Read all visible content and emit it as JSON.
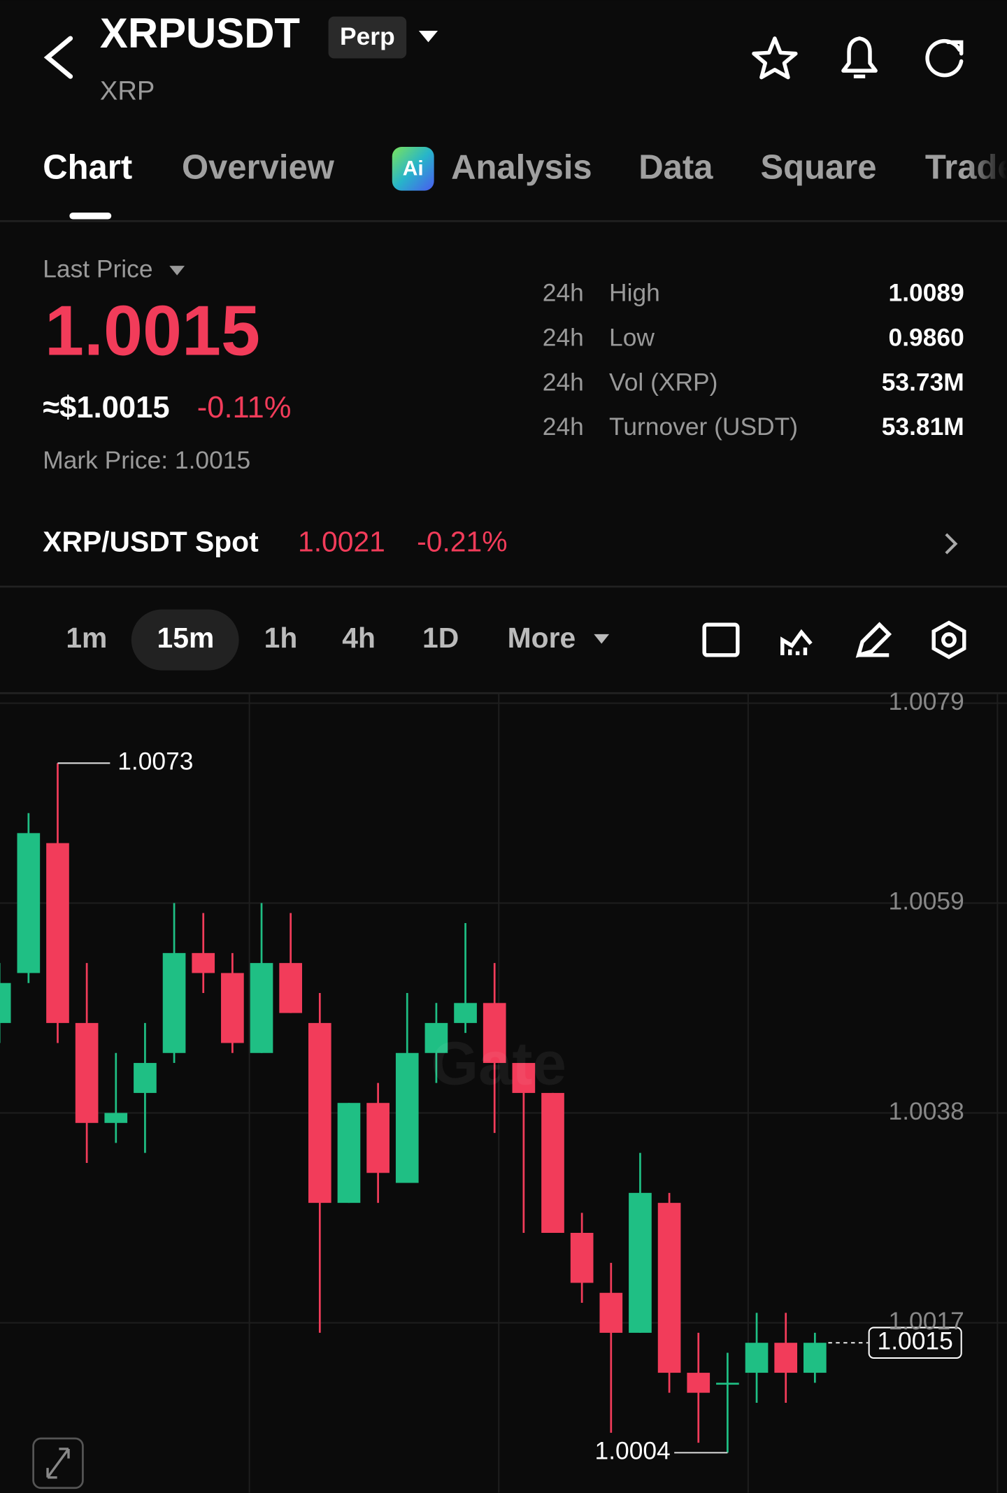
{
  "header": {
    "symbol": "XRPUSDT",
    "badge": "Perp",
    "base": "XRP"
  },
  "tabs": [
    "Chart",
    "Overview",
    "Analysis",
    "Data",
    "Square",
    "Trade"
  ],
  "ai_icon": "Ai",
  "price": {
    "label": "Last Price",
    "last": "1.0015",
    "usd": "≈$1.0015",
    "change": "-0.11%",
    "mark": "Mark Price: 1.0015"
  },
  "stats": [
    {
      "period": "24h",
      "label": "High",
      "value": "1.0089"
    },
    {
      "period": "24h",
      "label": "Low",
      "value": "0.9860"
    },
    {
      "period": "24h",
      "label": "Vol (XRP)",
      "value": "53.73M"
    },
    {
      "period": "24h",
      "label": "Turnover (USDT)",
      "value": "53.81M"
    }
  ],
  "spot": {
    "label": "XRP/USDT Spot",
    "price": "1.0021",
    "change": "-0.21%"
  },
  "intervals": [
    "1m",
    "15m",
    "1h",
    "4h",
    "1D",
    "More"
  ],
  "watermark": "Gate",
  "chart_data": {
    "type": "candlestick",
    "up_color": "#1fbf84",
    "down_color": "#f23c5a",
    "grid": true,
    "ylim": [
      1.0,
      1.008
    ],
    "yticks": [
      1.0079,
      1.0059,
      1.0038,
      1.0017
    ],
    "open": [
      1.0047,
      1.0052,
      1.0065,
      1.0047,
      1.0037,
      1.004,
      1.0044,
      1.0054,
      1.0052,
      1.0044,
      1.0053,
      1.0047,
      1.0029,
      1.0039,
      1.0031,
      1.0044,
      1.0047,
      1.0049,
      1.0043,
      1.004,
      1.0026,
      1.002,
      1.0016,
      1.0029,
      1.0012,
      1.0011,
      1.0012,
      1.0015,
      1.0012
    ],
    "high": [
      1.0053,
      1.0068,
      1.0073,
      1.0053,
      1.0044,
      1.0047,
      1.0059,
      1.0058,
      1.0054,
      1.0059,
      1.0058,
      1.005,
      1.0039,
      1.0041,
      1.005,
      1.0049,
      1.0057,
      1.0053,
      1.0043,
      1.004,
      1.0028,
      1.0023,
      1.0034,
      1.003,
      1.0016,
      1.0014,
      1.0018,
      1.0018,
      1.0016
    ],
    "low": [
      1.0045,
      1.0051,
      1.0045,
      1.0033,
      1.0035,
      1.0034,
      1.0043,
      1.005,
      1.0044,
      1.0044,
      1.0048,
      1.0016,
      1.0029,
      1.0029,
      1.0031,
      1.0041,
      1.0046,
      1.0036,
      1.0026,
      1.0026,
      1.0019,
      1.0006,
      1.0016,
      1.001,
      1.0005,
      1.0004,
      1.0009,
      1.0009,
      1.0011
    ],
    "close": [
      1.0051,
      1.0066,
      1.0047,
      1.0037,
      1.0038,
      1.0043,
      1.0054,
      1.0052,
      1.0045,
      1.0053,
      1.0048,
      1.0029,
      1.0039,
      1.0032,
      1.0044,
      1.0047,
      1.0049,
      1.0043,
      1.004,
      1.0026,
      1.0021,
      1.0016,
      1.003,
      1.0012,
      1.001,
      1.0011,
      1.0015,
      1.0012,
      1.0015
    ]
  }
}
